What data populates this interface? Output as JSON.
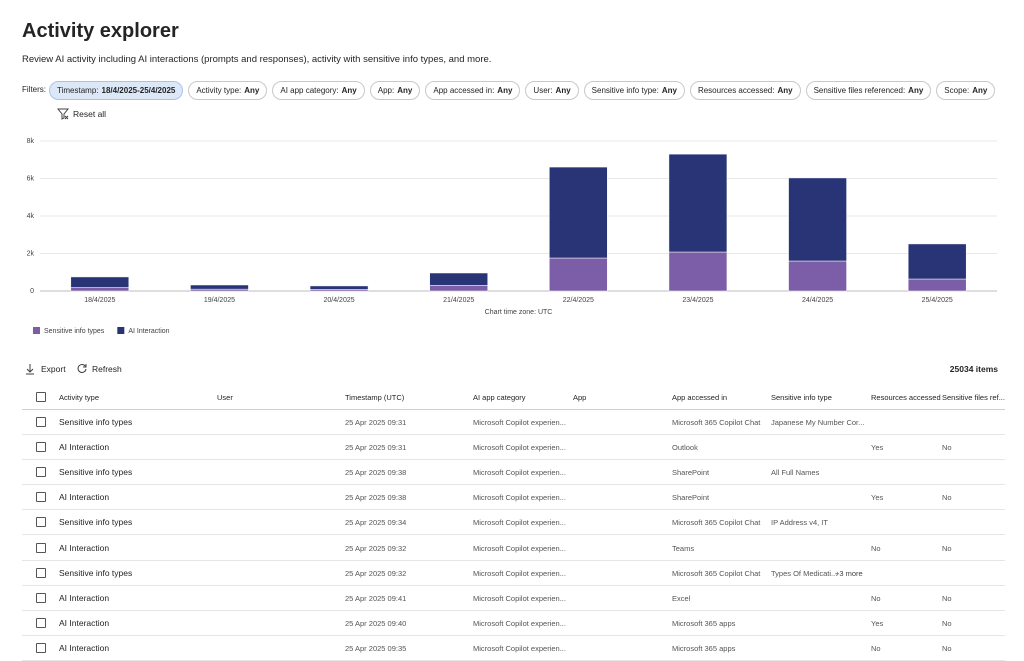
{
  "header": {
    "title": "Activity explorer",
    "subtitle": "Review AI activity including AI interactions (prompts and responses), activity with sensitive info types, and more."
  },
  "filters": {
    "label": "Filters:",
    "items": [
      {
        "label": "Timestamp:",
        "value": "18/4/2025-25/4/2025"
      },
      {
        "label": "Activity type:",
        "value": "Any"
      },
      {
        "label": "AI app category:",
        "value": "Any"
      },
      {
        "label": "App:",
        "value": "Any"
      },
      {
        "label": "App accessed in:",
        "value": "Any"
      },
      {
        "label": "User:",
        "value": "Any"
      },
      {
        "label": "Sensitive info type:",
        "value": "Any"
      },
      {
        "label": "Resources accessed:",
        "value": "Any"
      },
      {
        "label": "Sensitive files referenced:",
        "value": "Any"
      },
      {
        "label": "Scope:",
        "value": "Any"
      }
    ],
    "reset": "Reset all"
  },
  "chart_data": {
    "type": "stacked_bar",
    "categories": [
      "18/4/2025",
      "19/4/2025",
      "20/4/2025",
      "21/4/2025",
      "22/4/2025",
      "23/4/2025",
      "24/4/2025",
      "25/4/2025"
    ],
    "series": [
      {
        "name": "Sensitive info types",
        "color": "#7b5ea7",
        "values": [
          200,
          100,
          90,
          300,
          1760,
          2080,
          1600,
          640
        ]
      },
      {
        "name": "AI Interaction",
        "color": "#283476",
        "values": [
          550,
          220,
          180,
          660,
          4850,
          5220,
          4430,
          1870
        ]
      }
    ],
    "ylim": [
      0,
      8000
    ],
    "yticks": [
      0,
      {
        "value": 2000,
        "label": "2k"
      },
      {
        "value": 4000,
        "label": "4k"
      },
      {
        "value": 6000,
        "label": "6k"
      },
      {
        "value": 8000,
        "label": "8k"
      }
    ],
    "grid": true,
    "legend": "bottom-left",
    "xlabel": "Chart time zone: UTC"
  },
  "toolbar": {
    "export": "Export",
    "refresh": "Refresh",
    "count": "25034 items"
  },
  "table": {
    "columns": [
      "Activity type",
      "User",
      "Timestamp (UTC)",
      "AI app category",
      "App",
      "App accessed in",
      "Sensitive info type",
      "Resources accessed",
      "Sensitive files ref..."
    ],
    "rows": [
      {
        "cells": [
          "Sensitive info types",
          null,
          "25 Apr 2025 09:31",
          "Microsoft Copilot experien...",
          null,
          "Microsoft 365 Copilot Chat",
          "Japanese My Number Cor...",
          null,
          null
        ]
      },
      {
        "cells": [
          "AI Interaction",
          null,
          "25 Apr 2025 09:31",
          "Microsoft Copilot experien...",
          null,
          "Outlook",
          null,
          "Yes",
          "No"
        ]
      },
      {
        "cells": [
          "Sensitive info types",
          null,
          "25 Apr 2025 09:38",
          "Microsoft Copilot experien...",
          null,
          "SharePoint",
          "All Full Names",
          null,
          null
        ]
      },
      {
        "cells": [
          "AI Interaction",
          null,
          "25 Apr 2025 09:38",
          "Microsoft Copilot experien...",
          null,
          "SharePoint",
          null,
          "Yes",
          "No"
        ]
      },
      {
        "cells": [
          "Sensitive info types",
          null,
          "25 Apr 2025 09:34",
          "Microsoft Copilot experien...",
          null,
          "Microsoft 365 Copilot Chat",
          "IP Address v4, IT",
          null,
          null
        ]
      },
      {
        "cells": [
          "AI Interaction",
          null,
          "25 Apr 2025 09:32",
          "Microsoft Copilot experien...",
          null,
          "Teams",
          null,
          "No",
          "No"
        ]
      },
      {
        "cells": [
          "Sensitive info types",
          null,
          "25 Apr 2025 09:32",
          "Microsoft Copilot experien...",
          null,
          "Microsoft 365 Copilot Chat",
          "Types Of Medicati...",
          null,
          null
        ],
        "more": "+3 more"
      },
      {
        "cells": [
          "AI Interaction",
          null,
          "25 Apr 2025 09:41",
          "Microsoft Copilot experien...",
          null,
          "Excel",
          null,
          "No",
          "No"
        ]
      },
      {
        "cells": [
          "AI Interaction",
          null,
          "25 Apr 2025 09:40",
          "Microsoft Copilot experien...",
          null,
          "Microsoft 365 apps",
          null,
          "Yes",
          "No"
        ]
      },
      {
        "cells": [
          "AI Interaction",
          null,
          "25 Apr 2025 09:35",
          "Microsoft Copilot experien...",
          null,
          "Microsoft 365 apps",
          null,
          "No",
          "No"
        ]
      }
    ]
  }
}
